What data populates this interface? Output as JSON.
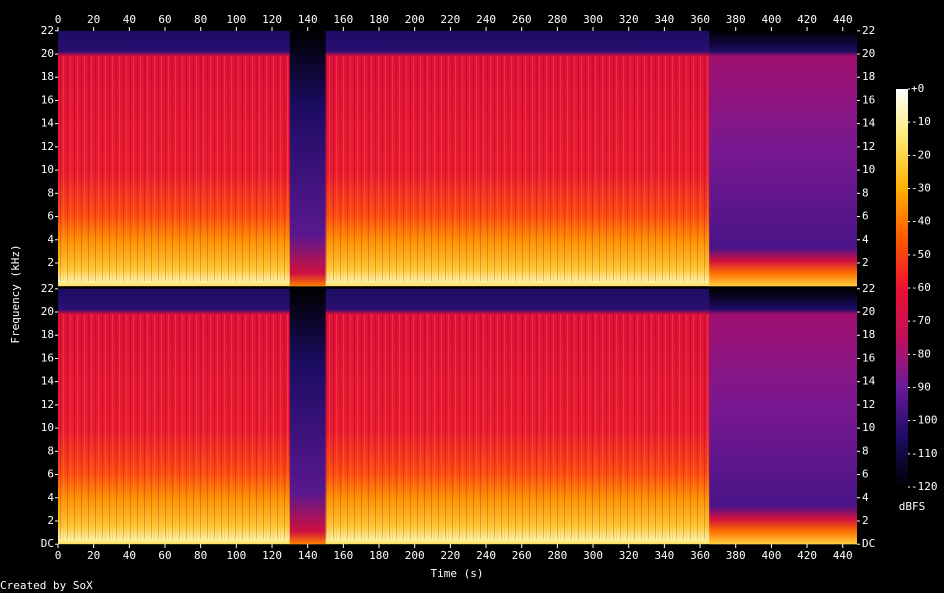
{
  "chart_data": {
    "type": "spectrogram",
    "x_label": "Time (s)",
    "y_label": "Frequency (kHz)",
    "credit": "Created by SoX",
    "xlim": [
      0,
      448
    ],
    "xticks": [
      0,
      20,
      40,
      60,
      80,
      100,
      120,
      140,
      160,
      180,
      200,
      220,
      240,
      260,
      280,
      300,
      320,
      340,
      360,
      380,
      400,
      420,
      440
    ],
    "channels": [
      {
        "ylim": [
          0,
          22
        ],
        "yticks": [
          2,
          4,
          6,
          8,
          10,
          12,
          14,
          16,
          18,
          20,
          22
        ]
      },
      {
        "ylim": [
          0,
          22
        ],
        "yticks": [
          {
            "value": 0,
            "label": "DC"
          },
          2,
          4,
          6,
          8,
          10,
          12,
          14,
          16,
          18,
          20,
          22
        ]
      }
    ],
    "colorbar": {
      "label": "dBFS",
      "lim": [
        -120,
        0
      ],
      "ticks": [
        {
          "value": 0,
          "label": "+0"
        },
        -10,
        -20,
        -30,
        -40,
        -50,
        -60,
        -70,
        -80,
        -90,
        -100,
        -110,
        -120
      ],
      "colors": [
        "#000000",
        "#1c0c63",
        "#6a1a9a",
        "#c0105a",
        "#ee1030",
        "#ff5a00",
        "#ffb000",
        "#ffe870",
        "#ffffff"
      ]
    }
  }
}
